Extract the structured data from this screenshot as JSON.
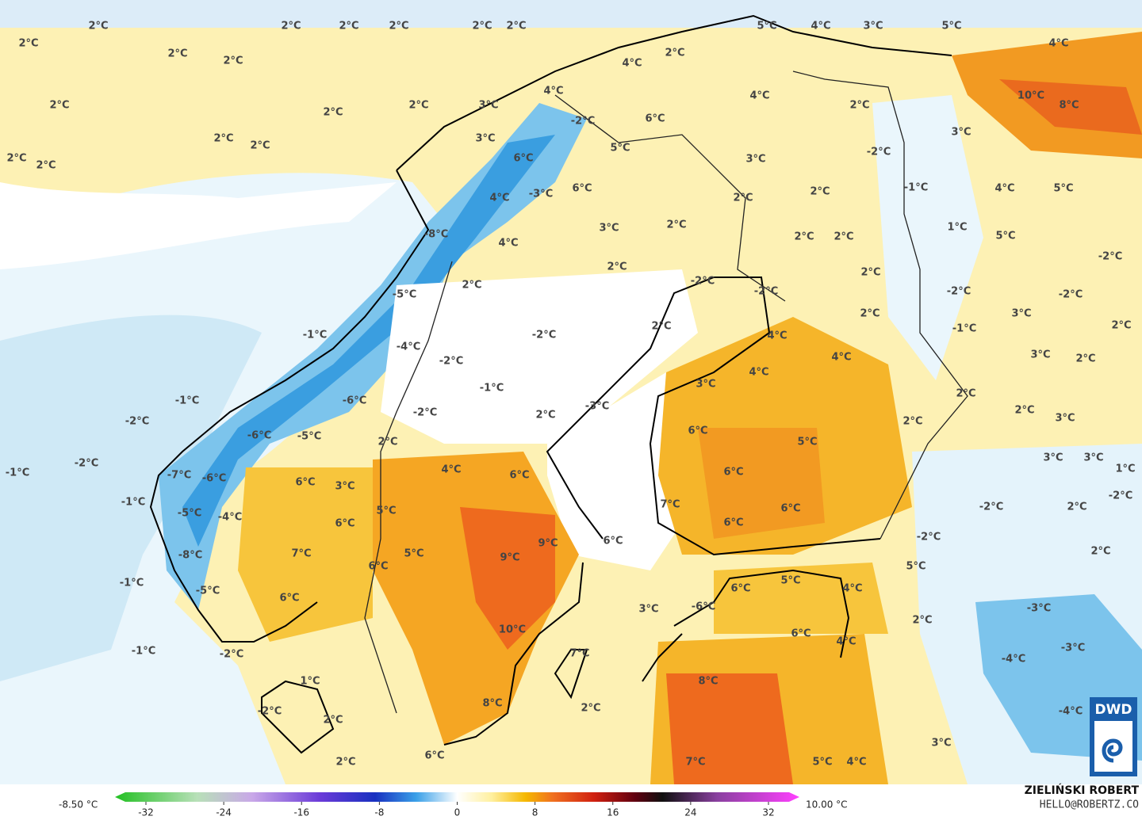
{
  "map": {
    "labels": [
      "2°C",
      "2°C",
      "2°C",
      "2°C",
      "2°C",
      "2°C",
      "5°C",
      "4°C",
      "3°C",
      "5°C",
      "4°C",
      "2°C",
      "2°C",
      "2°C",
      "2°C",
      "2°C",
      "2°C",
      "2°C",
      "2°C",
      "2°C",
      "2°C",
      "4°C",
      "2°C",
      "4°C",
      "3°C",
      "-2°C",
      "3°C",
      "6°C",
      "4°C",
      "2°C",
      "10°C",
      "8°C",
      "3°C",
      "5°C",
      "6°C",
      "-2°C",
      "3°C",
      "4°C",
      "-3°C",
      "6°C",
      "2°C",
      "2°C",
      "-1°C",
      "4°C",
      "5°C",
      "3°C",
      "2°C",
      "1°C",
      "5°C",
      "2°C",
      "2°C",
      "-8°C",
      "4°C",
      "2°C",
      "-2°C",
      "2°C",
      "2°C",
      "-2°C",
      "-2°C",
      "-5°C",
      "-2°C",
      "-2°C",
      "2°C",
      "3°C",
      "2°C",
      "-1°C",
      "-2°C",
      "-1°C",
      "2°C",
      "4°C",
      "-4°C",
      "4°C",
      "3°C",
      "2°C",
      "-2°C",
      "4°C",
      "-1°C",
      "3°C",
      "-1°C",
      "-6°C",
      "2°C",
      "2°C",
      "-2°C",
      "2°C",
      "-3°C",
      "3°C",
      "2°C",
      "-2°C",
      "6°C",
      "-6°C",
      "-5°C",
      "5°C",
      "2°C",
      "-2°C",
      "4°C",
      "6°C",
      "6°C",
      "3°C",
      "3°C",
      "-1°C",
      "-7°C",
      "-6°C",
      "6°C",
      "3°C",
      "1°C",
      "-2°C",
      "-1°C",
      "5°C",
      "7°C",
      "6°C",
      "-2°C",
      "2°C",
      "-5°C",
      "-4°C",
      "6°C",
      "6°C",
      "-2°C",
      "9°C",
      "6°C",
      "2°C",
      "7°C",
      "5°C",
      "9°C",
      "-8°C",
      "6°C",
      "5°C",
      "-1°C",
      "-5°C",
      "6°C",
      "6°C",
      "5°C",
      "4°C",
      "-6°C",
      "3°C",
      "-3°C",
      "2°C",
      "10°C",
      "6°C",
      "4°C",
      "-1°C",
      "-2°C",
      "7°C",
      "-4°C",
      "-3°C",
      "1°C",
      "8°C",
      "-2°C",
      "8°C",
      "2°C",
      "-4°C",
      "2°C",
      "3°C",
      "6°C",
      "2°C",
      "7°C",
      "5°C",
      "4°C"
    ],
    "colorbar": {
      "min_label": "-8.50 °C",
      "max_label": "10.00 °C",
      "ticks": [
        -32,
        -24,
        -16,
        -8,
        0,
        8,
        16,
        24,
        32
      ]
    },
    "credit": {
      "name": "ZIELIŃSKI ROBERT",
      "email": "HELLO@ROBERTZ.CO",
      "logo": "DWD"
    }
  }
}
